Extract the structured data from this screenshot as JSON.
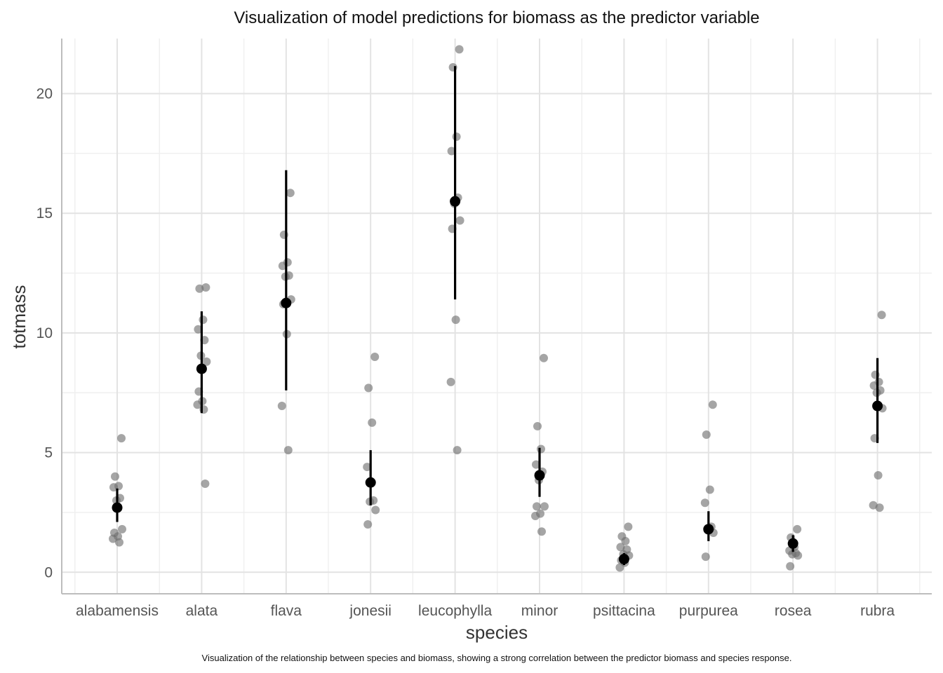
{
  "chart_data": {
    "type": "scatter",
    "title": "Visualization of model predictions for biomass as the predictor variable",
    "xlabel": "species",
    "ylabel": "totmass",
    "caption": "Visualization of the relationship between species and biomass, showing a strong correlation between the predictor biomass and species response.",
    "ylim": [
      -0.9,
      22.3
    ],
    "yticks": [
      0,
      5,
      10,
      15,
      20
    ],
    "grid": true,
    "categories": [
      "alabamensis",
      "alata",
      "flava",
      "jonesii",
      "leucophylla",
      "minor",
      "psittacina",
      "purpurea",
      "rosea",
      "rubra"
    ],
    "raw_points": [
      {
        "species": "alabamensis",
        "values": [
          5.6,
          4.0,
          3.6,
          3.55,
          3.1,
          3.0,
          1.8,
          1.65,
          1.5,
          1.4,
          1.25
        ]
      },
      {
        "species": "alata",
        "values": [
          11.9,
          11.85,
          10.55,
          10.15,
          9.7,
          9.05,
          8.8,
          7.55,
          7.15,
          7.0,
          6.8,
          3.7
        ]
      },
      {
        "species": "flava",
        "values": [
          15.85,
          14.1,
          12.95,
          12.8,
          12.4,
          12.35,
          11.4,
          11.2,
          9.95,
          6.95,
          5.1
        ]
      },
      {
        "species": "jonesii",
        "values": [
          9.0,
          7.7,
          6.25,
          4.4,
          3.0,
          2.95,
          2.6,
          2.0
        ]
      },
      {
        "species": "leucophylla",
        "values": [
          21.85,
          21.1,
          18.2,
          17.6,
          15.65,
          15.4,
          14.7,
          14.35,
          10.55,
          7.95,
          5.1
        ]
      },
      {
        "species": "minor",
        "values": [
          8.95,
          6.1,
          5.15,
          4.5,
          4.2,
          3.85,
          2.75,
          2.75,
          2.45,
          2.35,
          1.7
        ]
      },
      {
        "species": "psittacina",
        "values": [
          1.9,
          1.5,
          1.3,
          1.05,
          0.95,
          0.75,
          0.7,
          0.5,
          0.4,
          0.2
        ]
      },
      {
        "species": "purpurea",
        "values": [
          7.0,
          5.75,
          3.45,
          2.9,
          1.9,
          1.75,
          1.65,
          0.65
        ]
      },
      {
        "species": "rosea",
        "values": [
          1.8,
          1.45,
          1.05,
          0.9,
          0.8,
          0.75,
          0.7,
          0.25
        ]
      },
      {
        "species": "rubra",
        "values": [
          10.75,
          8.25,
          7.95,
          7.8,
          7.6,
          7.5,
          6.85,
          5.6,
          4.05,
          2.8,
          2.7
        ]
      }
    ],
    "estimates": [
      {
        "species": "alabamensis",
        "mean": 2.7,
        "lower": 2.1,
        "upper": 3.5
      },
      {
        "species": "alata",
        "mean": 8.5,
        "lower": 6.65,
        "upper": 10.9
      },
      {
        "species": "flava",
        "mean": 11.25,
        "lower": 7.6,
        "upper": 16.8
      },
      {
        "species": "jonesii",
        "mean": 3.75,
        "lower": 2.8,
        "upper": 5.1
      },
      {
        "species": "leucophylla",
        "mean": 15.5,
        "lower": 11.4,
        "upper": 21.15
      },
      {
        "species": "minor",
        "mean": 4.05,
        "lower": 3.15,
        "upper": 5.2
      },
      {
        "species": "psittacina",
        "mean": 0.55,
        "lower": 0.3,
        "upper": 0.8
      },
      {
        "species": "purpurea",
        "mean": 1.8,
        "lower": 1.3,
        "upper": 2.55
      },
      {
        "species": "rosea",
        "mean": 1.2,
        "lower": 0.85,
        "upper": 1.55
      },
      {
        "species": "rubra",
        "mean": 6.95,
        "lower": 5.4,
        "upper": 8.95
      }
    ],
    "colors": {
      "raw_point": "#6e6e6e",
      "estimate": "#000000"
    }
  }
}
